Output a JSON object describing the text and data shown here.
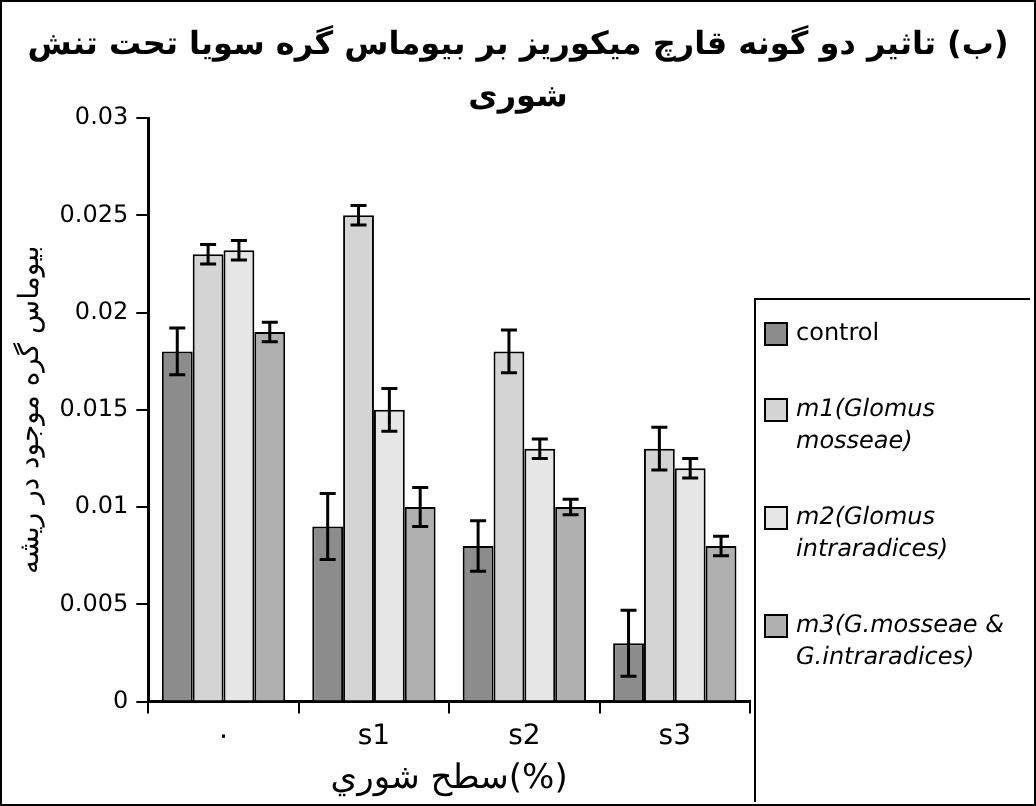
{
  "chart_data": {
    "type": "bar",
    "title": "(ب) تاثیر دو گونه قارچ میکوریز بر بیوماس گره سویا تحت تنش شوری",
    "xlabel": "سطح شوري(%)",
    "ylabel": "بیوماس گره موجود در ریشه",
    "categories": [
      "٠",
      "s1",
      "s2",
      "s3"
    ],
    "series": [
      {
        "name": "control",
        "color": "#8c8c8c",
        "values": [
          0.018,
          0.009,
          0.008,
          0.003
        ],
        "errors": [
          0.0012,
          0.0017,
          0.0013,
          0.0017
        ]
      },
      {
        "name": "m1(Glomus mosseae)",
        "color": "#d4d4d4",
        "values": [
          0.023,
          0.025,
          0.018,
          0.013
        ],
        "errors": [
          0.0005,
          0.0005,
          0.0011,
          0.0011
        ]
      },
      {
        "name": "m2(Glomus intraradices)",
        "color": "#e6e6e6",
        "values": [
          0.0232,
          0.015,
          0.013,
          0.012
        ],
        "errors": [
          0.0005,
          0.0011,
          0.0005,
          0.0005
        ]
      },
      {
        "name": "m3(G.mosseae & G.intraradices)",
        "color": "#b0b0b0",
        "values": [
          0.019,
          0.01,
          0.01,
          0.008
        ],
        "errors": [
          0.0005,
          0.001,
          0.0004,
          0.0005
        ]
      }
    ],
    "ylim": [
      0,
      0.03
    ],
    "yticks": [
      0,
      0.005,
      0.01,
      0.015,
      0.02,
      0.025,
      0.03
    ],
    "grid": false,
    "legend": "right"
  }
}
